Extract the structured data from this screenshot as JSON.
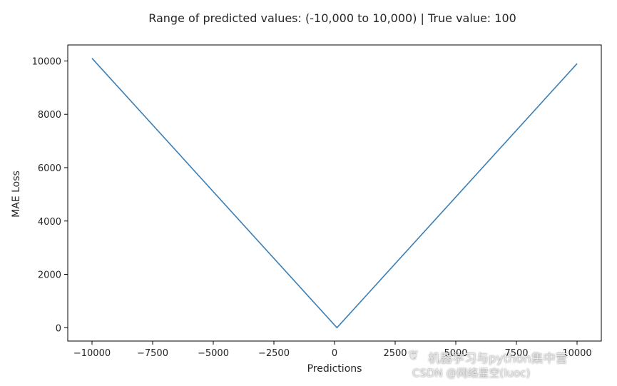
{
  "chart_data": {
    "type": "line",
    "title": "Range of predicted values: (-10,000 to 10,000) | True value: 100",
    "xlabel": "Predictions",
    "ylabel": "MAE Loss",
    "xlim": [
      -11000,
      11000
    ],
    "ylim": [
      -500,
      10600
    ],
    "x_ticks": [
      -10000,
      -7500,
      -5000,
      -2500,
      0,
      2500,
      5000,
      7500,
      10000
    ],
    "x_tick_labels": [
      "−10000",
      "−7500",
      "−5000",
      "−2500",
      "0",
      "2500",
      "5000",
      "7500",
      "10000"
    ],
    "y_ticks": [
      0,
      2000,
      4000,
      6000,
      8000,
      10000
    ],
    "y_tick_labels": [
      "0",
      "2000",
      "4000",
      "6000",
      "8000",
      "10000"
    ],
    "grid": false,
    "series": [
      {
        "color": "#3a7fb5",
        "x": [
          -10000,
          100,
          10000
        ],
        "y": [
          10100,
          0,
          9900
        ]
      }
    ]
  },
  "watermark": {
    "line1": "机器学习与python集中营",
    "line2": "CSDN @网络星空(luoc)",
    "icon": "wechat-icon"
  }
}
